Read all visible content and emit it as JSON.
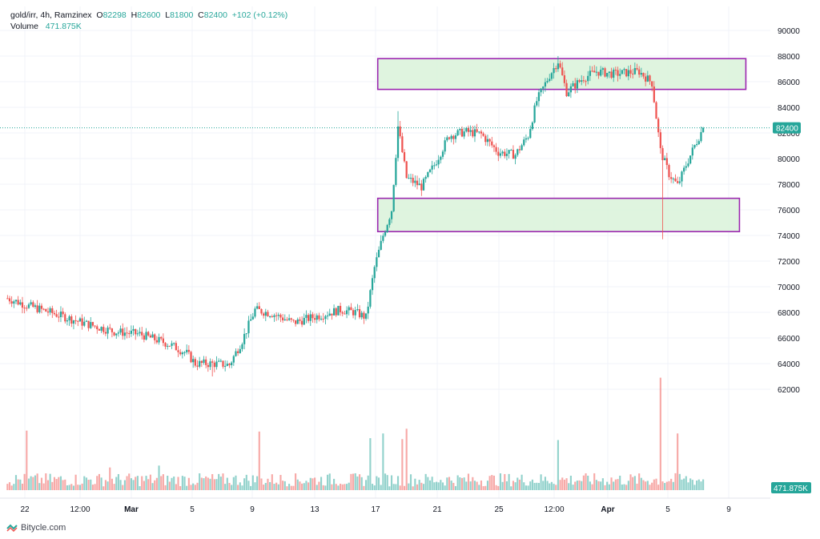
{
  "header": {
    "symbol": "gold/irr, 4h, Ramzinex",
    "o_label": "O",
    "o_value": "82298",
    "h_label": "H",
    "h_value": "82600",
    "l_label": "L",
    "l_value": "81800",
    "c_label": "C",
    "c_value": "82400",
    "change": "+102 (+0.12%)",
    "volume_label": "Volume",
    "volume_value": "471.875K"
  },
  "footer": {
    "brand": "Bitycle.com"
  },
  "colors": {
    "up": "#26a69a",
    "down": "#ef5350",
    "zone_fill": "#d9f2d9",
    "zone_stroke": "#9c27b0",
    "grid": "#f0f3fa"
  },
  "chart_data": {
    "type": "candlestick",
    "price_axis": {
      "ylim": [
        62500,
        90500
      ],
      "ticks": [
        62000,
        64000,
        66000,
        68000,
        70000,
        72000,
        74000,
        76000,
        78000,
        80000,
        82000,
        84000,
        86000,
        88000,
        90000
      ],
      "tick_labels": [
        "62000",
        "64000",
        "66000",
        "68000",
        "70000",
        "72000",
        "74000",
        "76000",
        "78000",
        "80000",
        "82000",
        "84000",
        "86000",
        "88000",
        "90000"
      ]
    },
    "time_axis": {
      "labels": [
        "22",
        "12:00",
        "Mar",
        "5",
        "9",
        "13",
        "17",
        "21",
        "25",
        "12:00",
        "Apr",
        "5",
        "9"
      ],
      "bold": [
        "Mar",
        "Apr"
      ]
    },
    "last_price": {
      "value": 82400,
      "label": "82400"
    },
    "last_volume": {
      "label": "471.875K"
    },
    "zones": [
      {
        "from_bar": 174,
        "to_bar": 346,
        "top": 87800,
        "bottom": 85400
      },
      {
        "from_bar": 174,
        "to_bar": 343,
        "top": 76900,
        "bottom": 74300
      }
    ],
    "waypoints": [
      [
        0,
        69100
      ],
      [
        10,
        68500
      ],
      [
        20,
        68000
      ],
      [
        35,
        67200
      ],
      [
        50,
        66500
      ],
      [
        62,
        66300
      ],
      [
        76,
        65500
      ],
      [
        84,
        64800
      ],
      [
        88,
        64000
      ],
      [
        96,
        64000
      ],
      [
        104,
        63900
      ],
      [
        110,
        65800
      ],
      [
        116,
        68200
      ],
      [
        124,
        67900
      ],
      [
        134,
        67200
      ],
      [
        145,
        67700
      ],
      [
        156,
        68200
      ],
      [
        163,
        68000
      ],
      [
        168,
        67600
      ],
      [
        172,
        71500
      ],
      [
        176,
        74000
      ],
      [
        180,
        76000
      ],
      [
        183,
        82500
      ],
      [
        187,
        78500
      ],
      [
        194,
        77800
      ],
      [
        200,
        79500
      ],
      [
        207,
        81800
      ],
      [
        215,
        82100
      ],
      [
        222,
        81900
      ],
      [
        230,
        80500
      ],
      [
        238,
        80300
      ],
      [
        244,
        81800
      ],
      [
        248,
        84500
      ],
      [
        254,
        86500
      ],
      [
        258,
        87600
      ],
      [
        262,
        85200
      ],
      [
        270,
        86300
      ],
      [
        276,
        86800
      ],
      [
        284,
        86600
      ],
      [
        296,
        86800
      ],
      [
        302,
        85900
      ],
      [
        306,
        80600
      ],
      [
        310,
        78800
      ],
      [
        314,
        77900
      ],
      [
        318,
        79500
      ],
      [
        322,
        81000
      ],
      [
        326,
        82400
      ]
    ],
    "volume_spikes": [
      [
        9,
        6300
      ],
      [
        48,
        2400
      ],
      [
        71,
        2600
      ],
      [
        118,
        6200
      ],
      [
        170,
        5500
      ],
      [
        176,
        6000
      ],
      [
        185,
        5400
      ],
      [
        187,
        6500
      ],
      [
        258,
        5300
      ],
      [
        306,
        11900
      ],
      [
        314,
        6000
      ]
    ]
  }
}
